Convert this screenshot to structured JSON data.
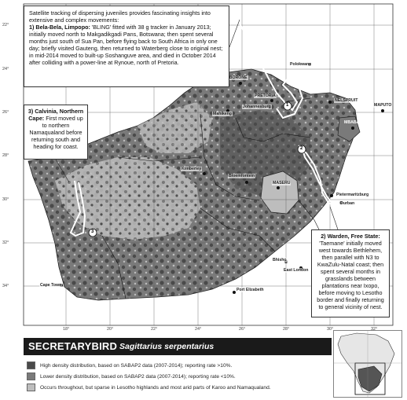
{
  "colors": {
    "high": "#4a4a4a",
    "lower": "#7a7a7a",
    "sparse": "#bdbdbd",
    "water": "#ffffff",
    "track": "#ffffff"
  },
  "callouts": {
    "main": {
      "intro": "Satellite tracking of dispersing juveniles provides fascinating insights into extensive and complex movements:",
      "heading": "1) Bela-Bela, Limpopo:",
      "body": "'BLING' fitted with 38 g tracker in January 2013; initially moved north to Makgadikgadi Pans, Botswana; then spent several months just south of Sua Pan, before flying back to South Africa in only one day; briefly visited Gauteng, then returned to Waterberg close to original nest; in mid-2014 moved to built-up Soshanguve area, and died in October 2014 after colliding with a power-line at Rynoue, north of Pretoria."
    },
    "calvinia": {
      "heading": "3) Calvinia, Northern Cape:",
      "body": "First moved up to northern Namaqualand before returning south and heading for coast."
    },
    "warden": {
      "heading": "2) Warden, Free State:",
      "body": "'Taemane' initially moved west towards Bethlehem, then parallel with N3 to KwaZulu-Natal coast; then spent several months in grasslands between plantations near Ixopo, before moving to Lesotho border and finally returning to general vicinity of nest."
    }
  },
  "lat_labels": [
    "22°",
    "24°",
    "26°",
    "28°",
    "30°",
    "32°",
    "34°"
  ],
  "lon_labels": [
    "18°",
    "20°",
    "22°",
    "24°",
    "26°",
    "28°",
    "30°",
    "32°"
  ],
  "places": {
    "polokwane": "Polokwane",
    "gaborone": "GABORONE",
    "pretoria": "PRETORIA",
    "johannesburg": "Johannesburg",
    "mahikeng": "Mahikeng",
    "nelspruit": "NELSPRUIT",
    "maputo": "MAPUTO",
    "mbabane": "MBABANE",
    "kimberley": "Kimberley",
    "bloemfontein": "Bloemfontein",
    "maseru": "MASERU",
    "pietermaritzburg": "Pietermaritzburg",
    "durban": "Durban",
    "bhisho": "Bhisho",
    "east_london": "East London",
    "port_elizabeth": "Port Elizabeth",
    "cape_town": "Cape Town"
  },
  "track_numbers": [
    "1",
    "2",
    "3"
  ],
  "legend": {
    "title": "SECRETARYBIRD",
    "scientific": "Sagittarius serpentarius",
    "items": [
      {
        "label": "High density distribution, based on SABAP2 data (2007-2014); reporting rate >10%.",
        "color": "#4a4a4a"
      },
      {
        "label": "Lower density distribution, based on SABAP2 data (2007-2014); reporting rate <10%.",
        "color": "#7a7a7a"
      },
      {
        "label": "Occurs throughout, but sparse in Lesotho highlands and most arid parts of Karoo and Namaqualand.",
        "color": "#bdbdbd"
      }
    ]
  }
}
